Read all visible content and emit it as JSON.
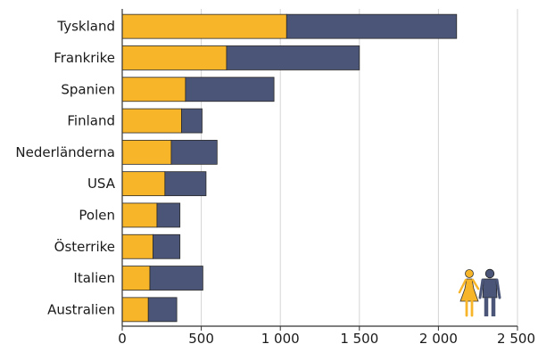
{
  "chart_data": {
    "type": "bar",
    "orientation": "horizontal",
    "stacked": true,
    "categories": [
      "Tyskland",
      "Frankrike",
      "Spanien",
      "Finland",
      "Nederländerna",
      "USA",
      "Polen",
      "Österrike",
      "Italien",
      "Australien"
    ],
    "series": [
      {
        "values": [
          1040,
          660,
          400,
          375,
          310,
          270,
          220,
          195,
          175,
          165
        ]
      },
      {
        "values": [
          1075,
          840,
          560,
          130,
          290,
          260,
          145,
          170,
          335,
          180
        ]
      }
    ],
    "xlim": [
      0,
      2500
    ],
    "x_ticks": [
      0,
      500,
      1000,
      1500,
      2000,
      2500
    ],
    "x_tick_labels": [
      "0",
      "500",
      "1 000",
      "1 500",
      "2 000",
      "2 500"
    ],
    "grid": "vertical",
    "legend": "icons bottom-right (woman, man)"
  },
  "colors": {
    "women": "#f7b52a",
    "men": "#4b5577",
    "grid": "#d4d4d4",
    "axis": "#333333"
  },
  "icons": [
    "woman-icon",
    "man-icon"
  ]
}
